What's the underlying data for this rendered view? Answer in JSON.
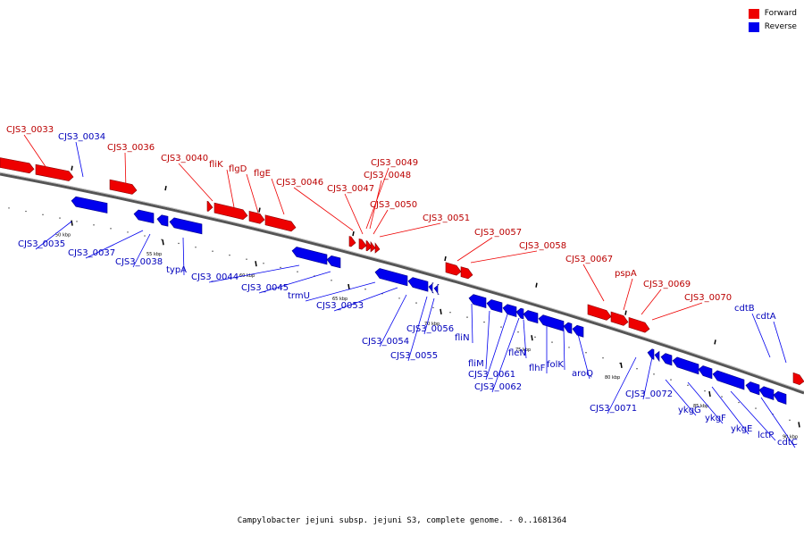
{
  "legend": {
    "forward_label": "Forward",
    "reverse_label": "Reverse",
    "forward_color": "#ee0000",
    "reverse_color": "#0000ee"
  },
  "caption": "Campylobacter jejuni subsp. jejuni S3, complete genome. - 0..1681364",
  "scale_labels": [
    "50 kbp",
    "55 kbp",
    "60 kbp",
    "65 kbp",
    "70 kbp",
    "75 kbp",
    "80 kbp",
    "85 kbp",
    "90 kbp"
  ],
  "forward_genes": [
    "CJS3_0033",
    "CJS3_0036",
    "CJS3_0040",
    "fliK",
    "flgD",
    "flgE",
    "CJS3_0046",
    "CJS3_0047",
    "CJS3_0049",
    "CJS3_0048",
    "CJS3_0050",
    "CJS3_0051",
    "CJS3_0057",
    "CJS3_0058",
    "CJS3_0067",
    "pspA",
    "CJS3_0069",
    "CJS3_0070"
  ],
  "reverse_genes": [
    "CJS3_0034",
    "CJS3_0035",
    "CJS3_0037",
    "CJS3_0038",
    "typA",
    "CJS3_0044",
    "CJS3_0045",
    "trmU",
    "CJS3_0053",
    "CJS3_0054",
    "CJS3_0055",
    "CJS3_0056",
    "fliN",
    "fliM",
    "CJS3_0061",
    "CJS3_0062",
    "flhF",
    "fleN",
    "folK",
    "aroQ",
    "CJS3_0071",
    "CJS3_0072",
    "ykgG",
    "ykgF",
    "ykgE",
    "lctP",
    "cdtB",
    "cdtA",
    "cdtC"
  ]
}
